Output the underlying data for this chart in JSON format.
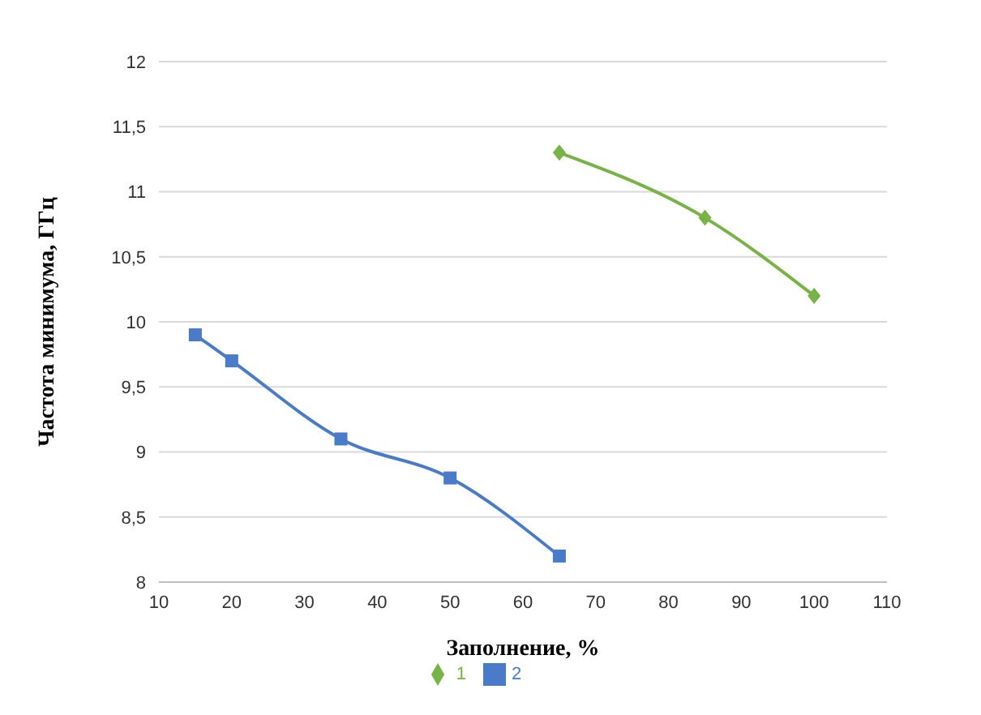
{
  "chart_data": {
    "type": "line",
    "xlabel": "Заполнение, %",
    "ylabel": "Частота минимума, ГГц",
    "xlim": [
      10,
      110
    ],
    "xticks": [
      10,
      20,
      30,
      40,
      50,
      60,
      70,
      80,
      90,
      100,
      110
    ],
    "ylim": [
      8,
      12
    ],
    "yticks": [
      8,
      {
        "value": 8.5,
        "label": "8,5"
      },
      9,
      {
        "value": 9.5,
        "label": "9,5"
      },
      10,
      {
        "value": 10.5,
        "label": "10,5"
      },
      11,
      {
        "value": 11.5,
        "label": "11,5"
      },
      12
    ],
    "grid": "y",
    "legend": "bottom",
    "line_style": "solid",
    "series": [
      {
        "name": "1",
        "color": "#77b347",
        "marker": "diamond",
        "x": [
          65,
          85,
          100
        ],
        "values": [
          11.3,
          10.8,
          10.2
        ]
      },
      {
        "name": "2",
        "color": "#4a7bc8",
        "marker": "square",
        "x": [
          15,
          20,
          35,
          50,
          65
        ],
        "values": [
          9.9,
          9.7,
          9.1,
          8.8,
          8.2
        ]
      }
    ]
  }
}
